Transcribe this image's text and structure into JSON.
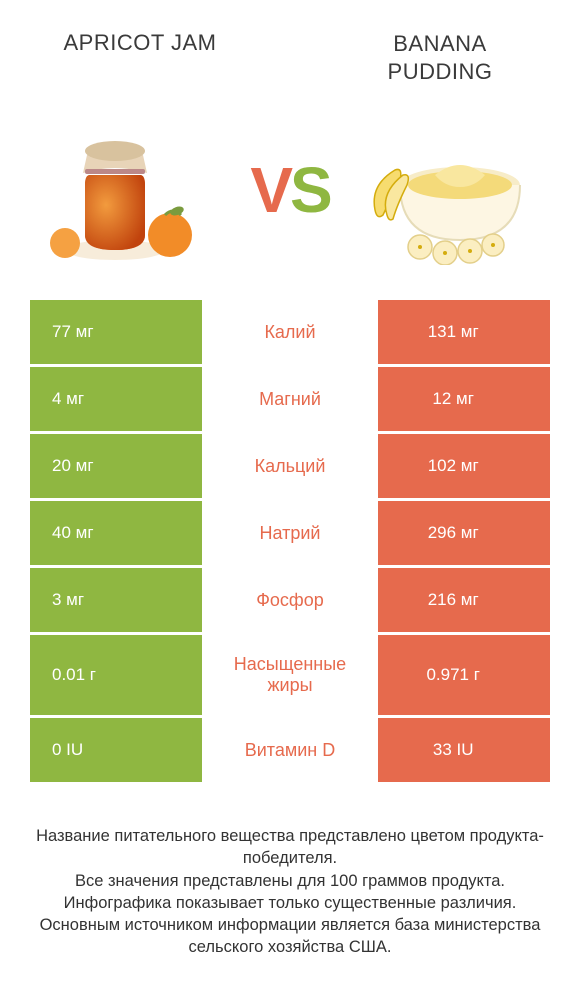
{
  "colors": {
    "green": "#8fb741",
    "orange": "#e66a4d",
    "text": "#3a3a3a"
  },
  "header": {
    "left_title": "Apricot jam",
    "right_title": "Banana pudding",
    "vs_v": "V",
    "vs_s": "S"
  },
  "rows": [
    {
      "left": "77 мг",
      "mid": "Калий",
      "right": "131 мг",
      "winner": "right",
      "tall": false
    },
    {
      "left": "4 мг",
      "mid": "Магний",
      "right": "12 мг",
      "winner": "right",
      "tall": false
    },
    {
      "left": "20 мг",
      "mid": "Кальций",
      "right": "102 мг",
      "winner": "right",
      "tall": false
    },
    {
      "left": "40 мг",
      "mid": "Натрий",
      "right": "296 мг",
      "winner": "right",
      "tall": false
    },
    {
      "left": "3 мг",
      "mid": "Фосфор",
      "right": "216 мг",
      "winner": "right",
      "tall": false
    },
    {
      "left": "0.01 г",
      "mid": "Насыщенные жиры",
      "right": "0.971 г",
      "winner": "right",
      "tall": true
    },
    {
      "left": "0 IU",
      "mid": "Витамин D",
      "right": "33 IU",
      "winner": "right",
      "tall": false
    }
  ],
  "footer": {
    "line1": "Название питательного вещества представлено цветом продукта-победителя.",
    "line2": "Все значения представлены для 100 граммов продукта.",
    "line3": "Инфографика показывает только существенные различия.",
    "line4": "Основным источником информации является база министерства сельского хозяйства США."
  }
}
